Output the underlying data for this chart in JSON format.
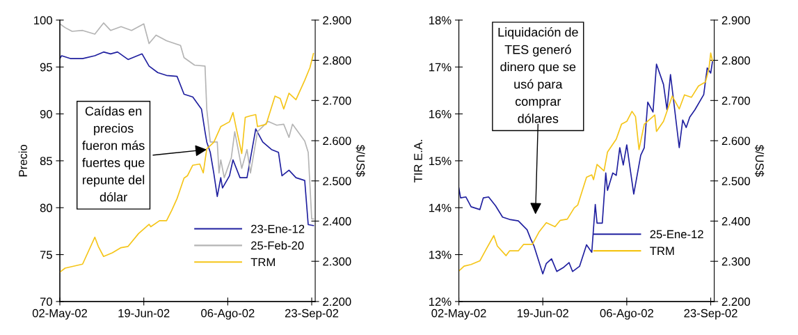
{
  "chart_data": [
    {
      "type": "line",
      "ylabel": "Precio",
      "y2label": "$/US$",
      "xlim": [
        "2002-05-02",
        "2002-09-25"
      ],
      "xticks": [
        {
          "value": "2002-05-02",
          "label": "02-May-02"
        },
        {
          "value": "2002-06-19",
          "label": "19-Jun-02"
        },
        {
          "value": "2002-08-06",
          "label": "06-Ago-02"
        },
        {
          "value": "2002-09-23",
          "label": "23-Sep-02"
        }
      ],
      "ylim": [
        70,
        100
      ],
      "yticks": [
        70,
        75,
        80,
        85,
        90,
        95,
        100
      ],
      "y2lim": [
        2200,
        2900
      ],
      "y2ticks": [
        {
          "value": 2200,
          "label": "2.200"
        },
        {
          "value": 2300,
          "label": "2.300"
        },
        {
          "value": 2400,
          "label": "2.400"
        },
        {
          "value": 2500,
          "label": "2.500"
        },
        {
          "value": 2600,
          "label": "2.600"
        },
        {
          "value": 2700,
          "label": "2.700"
        },
        {
          "value": 2800,
          "label": "2.800"
        },
        {
          "value": 2900,
          "label": "2.900"
        }
      ],
      "legend": "bottom right",
      "grid": false,
      "annotations": [
        {
          "text": "Caídas en\nprecios\nfueron más\nfuertes que\nrepunte del\ndólar",
          "x": "2002-07-25",
          "y": 86.2
        }
      ],
      "series": [
        {
          "name": "23-Ene-12",
          "color": "#1f1f9f",
          "axis": "y",
          "x": [
            "2002-05-02",
            "2002-05-03",
            "2002-05-08",
            "2002-05-15",
            "2002-05-22",
            "2002-05-27",
            "2002-05-31",
            "2002-06-04",
            "2002-06-10",
            "2002-06-18",
            "2002-06-22",
            "2002-06-27",
            "2002-07-02",
            "2002-07-08",
            "2002-07-12",
            "2002-07-17",
            "2002-07-22",
            "2002-07-24",
            "2002-07-25",
            "2002-07-27",
            "2002-07-29",
            "2002-07-31",
            "2002-08-02",
            "2002-08-03",
            "2002-08-07",
            "2002-08-09",
            "2002-08-13",
            "2002-08-17",
            "2002-08-22",
            "2002-08-26",
            "2002-08-31",
            "2002-09-04",
            "2002-09-06",
            "2002-09-10",
            "2002-09-14",
            "2002-09-19",
            "2002-09-21",
            "2002-09-24"
          ],
          "values": [
            95.9,
            96.2,
            95.9,
            95.9,
            96.2,
            96.6,
            96.4,
            96.6,
            95.8,
            96.4,
            95.1,
            94.4,
            94.1,
            94.0,
            92.1,
            91.8,
            90.5,
            88.1,
            87.0,
            85.9,
            83.7,
            81.2,
            83.2,
            82.1,
            83.4,
            85.1,
            83.2,
            83.2,
            88.4,
            87.0,
            86.2,
            85.9,
            83.4,
            84.0,
            83.2,
            82.9,
            78.2,
            78.1
          ]
        },
        {
          "name": "25-Feb-20",
          "color": "#b4b4b4",
          "axis": "y",
          "x": [
            "2002-05-02",
            "2002-05-05",
            "2002-05-09",
            "2002-05-15",
            "2002-05-22",
            "2002-05-27",
            "2002-05-31",
            "2002-06-06",
            "2002-06-12",
            "2002-06-19",
            "2002-06-22",
            "2002-06-26",
            "2002-07-02",
            "2002-07-10",
            "2002-07-12",
            "2002-07-18",
            "2002-07-24",
            "2002-07-25",
            "2002-07-27",
            "2002-07-31",
            "2002-08-01",
            "2002-08-02",
            "2002-08-04",
            "2002-08-08",
            "2002-08-10",
            "2002-08-14",
            "2002-08-17",
            "2002-08-19",
            "2002-08-23",
            "2002-08-29",
            "2002-09-03",
            "2002-09-07",
            "2002-09-10",
            "2002-09-12",
            "2002-09-19",
            "2002-09-21",
            "2002-09-23",
            "2002-09-24"
          ],
          "values": [
            99.6,
            99.2,
            98.8,
            98.9,
            98.5,
            99.7,
            98.9,
            99.3,
            98.9,
            99.6,
            97.5,
            98.4,
            97.8,
            97.3,
            96.0,
            95.2,
            95.1,
            90.5,
            87.0,
            87.0,
            83.7,
            85.1,
            83.2,
            85.3,
            88.1,
            84.2,
            86.2,
            83.7,
            88.1,
            89.2,
            88.8,
            88.9,
            87.5,
            88.9,
            87.1,
            85.9,
            78.8,
            78.8
          ]
        },
        {
          "name": "TRM",
          "color": "#f5c518",
          "axis": "y2",
          "x": [
            "2002-05-02",
            "2002-05-05",
            "2002-05-15",
            "2002-05-22",
            "2002-05-24",
            "2002-05-27",
            "2002-06-01",
            "2002-06-06",
            "2002-06-10",
            "2002-06-16",
            "2002-06-22",
            "2002-06-23",
            "2002-06-28",
            "2002-07-02",
            "2002-07-05",
            "2002-07-08",
            "2002-07-12",
            "2002-07-14",
            "2002-07-17",
            "2002-07-21",
            "2002-07-23",
            "2002-07-25",
            "2002-07-29",
            "2002-08-02",
            "2002-08-07",
            "2002-08-09",
            "2002-08-11",
            "2002-08-14",
            "2002-08-16",
            "2002-08-19",
            "2002-08-22",
            "2002-08-23",
            "2002-08-28",
            "2002-09-02",
            "2002-09-05",
            "2002-09-07",
            "2002-09-10",
            "2002-09-14",
            "2002-09-19",
            "2002-09-22",
            "2002-09-24"
          ],
          "values": [
            2273,
            2283,
            2293,
            2360,
            2337,
            2312,
            2321,
            2334,
            2337,
            2369,
            2392,
            2386,
            2401,
            2401,
            2427,
            2456,
            2507,
            2513,
            2539,
            2542,
            2520,
            2580,
            2596,
            2635,
            2647,
            2670,
            2628,
            2568,
            2658,
            2662,
            2665,
            2635,
            2641,
            2711,
            2705,
            2679,
            2718,
            2702,
            2750,
            2782,
            2817
          ]
        }
      ]
    },
    {
      "type": "line",
      "ylabel": "TIR E.A.",
      "y2label": "$/US$",
      "xlim": [
        "2002-05-02",
        "2002-09-25"
      ],
      "xticks": [
        {
          "value": "2002-05-02",
          "label": "02-May-02"
        },
        {
          "value": "2002-06-19",
          "label": "19-Jun-02"
        },
        {
          "value": "2002-08-06",
          "label": "06-Ago-02"
        },
        {
          "value": "2002-09-23",
          "label": "23-Sep-02"
        }
      ],
      "ylim": [
        12,
        18
      ],
      "yticks": [
        {
          "value": 12,
          "label": "12%"
        },
        {
          "value": 13,
          "label": "13%"
        },
        {
          "value": 14,
          "label": "14%"
        },
        {
          "value": 15,
          "label": "15%"
        },
        {
          "value": 16,
          "label": "16%"
        },
        {
          "value": 17,
          "label": "17%"
        },
        {
          "value": 18,
          "label": "18%"
        }
      ],
      "y2lim": [
        2200,
        2900
      ],
      "y2ticks": [
        {
          "value": 2200,
          "label": "2.200"
        },
        {
          "value": 2300,
          "label": "2.300"
        },
        {
          "value": 2400,
          "label": "2.400"
        },
        {
          "value": 2500,
          "label": "2.500"
        },
        {
          "value": 2600,
          "label": "2.600"
        },
        {
          "value": 2700,
          "label": "2.700"
        },
        {
          "value": 2800,
          "label": "2.800"
        },
        {
          "value": 2900,
          "label": "2.900"
        }
      ],
      "legend": "bottom right",
      "grid": false,
      "annotations": [
        "Liquidación de\nTES generó\ndinero que se\nusó para\ncomprar\ndólares"
      ],
      "series": [
        {
          "name": "25-Ene-12",
          "color": "#1f1f9f",
          "axis": "y",
          "x": [
            "2002-05-02",
            "2002-05-03",
            "2002-05-06",
            "2002-05-09",
            "2002-05-14",
            "2002-05-16",
            "2002-05-19",
            "2002-05-23",
            "2002-05-27",
            "2002-05-31",
            "2002-06-05",
            "2002-06-10",
            "2002-06-12",
            "2002-06-14",
            "2002-06-19",
            "2002-06-21",
            "2002-06-24",
            "2002-06-27",
            "2002-07-01",
            "2002-07-04",
            "2002-07-06",
            "2002-07-10",
            "2002-07-14",
            "2002-07-17",
            "2002-07-19",
            "2002-07-20",
            "2002-07-23",
            "2002-07-25",
            "2002-07-26",
            "2002-07-29",
            "2002-07-31",
            "2002-08-02",
            "2002-08-04",
            "2002-08-06",
            "2002-08-10",
            "2002-08-14",
            "2002-08-16",
            "2002-08-18",
            "2002-08-21",
            "2002-08-23",
            "2002-08-27",
            "2002-08-29",
            "2002-08-31",
            "2002-09-05",
            "2002-09-07",
            "2002-09-09",
            "2002-09-11",
            "2002-09-14",
            "2002-09-19",
            "2002-09-21",
            "2002-09-23",
            "2002-09-24"
          ],
          "values": [
            14.42,
            14.21,
            14.23,
            14.02,
            13.96,
            14.21,
            14.23,
            14.04,
            13.8,
            13.75,
            13.72,
            13.53,
            13.34,
            13.18,
            12.59,
            12.81,
            12.91,
            12.64,
            12.73,
            12.83,
            12.64,
            12.75,
            13.21,
            13.05,
            14.07,
            13.67,
            13.67,
            14.74,
            14.37,
            14.74,
            14.69,
            15.28,
            14.91,
            15.34,
            14.29,
            15.12,
            15.28,
            16.25,
            16.04,
            17.06,
            16.63,
            16.09,
            16.84,
            15.28,
            15.87,
            15.71,
            15.93,
            16.09,
            16.41,
            16.98,
            16.87,
            17.11
          ]
        },
        {
          "name": "TRM",
          "color": "#f5c518",
          "axis": "y2",
          "x": [
            "2002-05-02",
            "2002-05-05",
            "2002-05-09",
            "2002-05-14",
            "2002-05-18",
            "2002-05-22",
            "2002-05-24",
            "2002-05-29",
            "2002-05-31",
            "2002-06-05",
            "2002-06-08",
            "2002-06-13",
            "2002-06-17",
            "2002-06-21",
            "2002-06-26",
            "2002-06-29",
            "2002-07-03",
            "2002-07-07",
            "2002-07-09",
            "2002-07-14",
            "2002-07-17",
            "2002-07-18",
            "2002-07-20",
            "2002-07-24",
            "2002-07-26",
            "2002-07-31",
            "2002-08-03",
            "2002-08-06",
            "2002-08-09",
            "2002-08-11",
            "2002-08-13",
            "2002-08-16",
            "2002-08-22",
            "2002-08-23",
            "2002-08-27",
            "2002-09-01",
            "2002-09-05",
            "2002-09-08",
            "2002-09-12",
            "2002-09-16",
            "2002-09-20",
            "2002-09-22",
            "2002-09-23",
            "2002-09-24"
          ],
          "values": [
            2276,
            2288,
            2292,
            2301,
            2333,
            2364,
            2338,
            2314,
            2326,
            2326,
            2342,
            2342,
            2374,
            2396,
            2386,
            2402,
            2405,
            2433,
            2440,
            2509,
            2515,
            2503,
            2541,
            2525,
            2572,
            2604,
            2641,
            2648,
            2673,
            2660,
            2578,
            2641,
            2664,
            2623,
            2648,
            2711,
            2679,
            2714,
            2708,
            2736,
            2746,
            2780,
            2818,
            2799
          ]
        }
      ]
    }
  ]
}
